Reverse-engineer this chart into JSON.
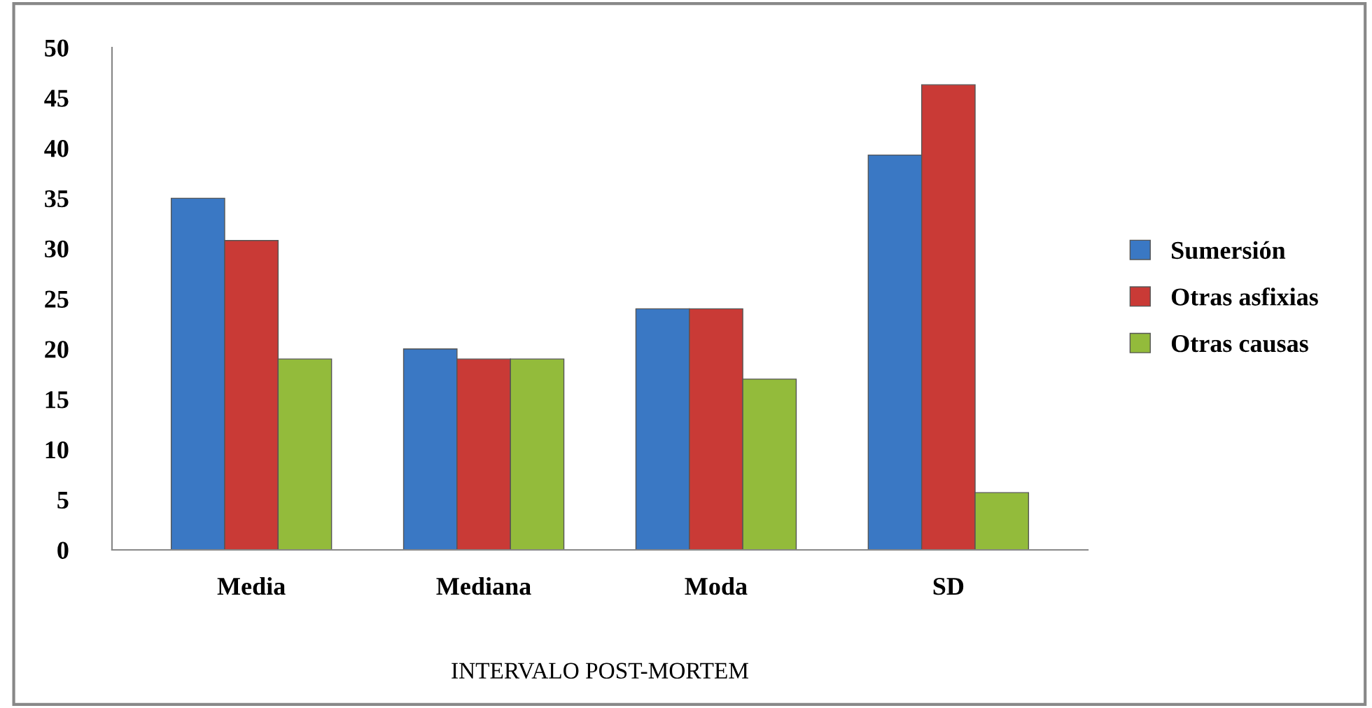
{
  "chart_data": {
    "type": "bar",
    "xlabel": "INTERVALO POST-MORTEM",
    "categories": [
      "Media",
      "Mediana",
      "Moda",
      "SD"
    ],
    "series": [
      {
        "name": "Sumersión",
        "color": "#3a78c4",
        "values": [
          35,
          20,
          24,
          39.3
        ]
      },
      {
        "name": "Otras asfixias",
        "color": "#c93a36",
        "values": [
          30.8,
          19,
          24,
          46.3
        ]
      },
      {
        "name": "Otras causas",
        "color": "#93bb3b",
        "values": [
          19,
          19,
          17,
          5.7
        ]
      }
    ],
    "ylim": [
      0,
      50
    ],
    "yticks": [
      0,
      5,
      10,
      15,
      20,
      25,
      30,
      35,
      40,
      45,
      50
    ],
    "grid": false,
    "legend": "right"
  }
}
